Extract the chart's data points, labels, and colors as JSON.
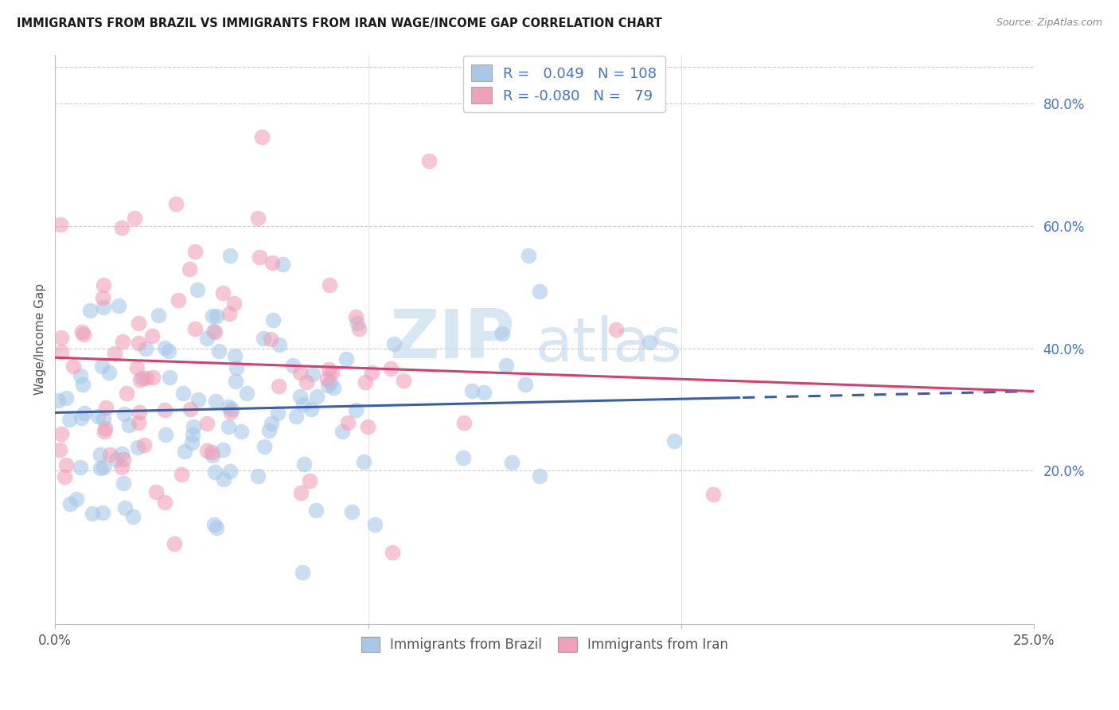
{
  "title": "IMMIGRANTS FROM BRAZIL VS IMMIGRANTS FROM IRAN WAGE/INCOME GAP CORRELATION CHART",
  "source": "Source: ZipAtlas.com",
  "ylabel": "Wage/Income Gap",
  "right_yticks": [
    "20.0%",
    "40.0%",
    "60.0%",
    "80.0%"
  ],
  "right_ytick_vals": [
    0.2,
    0.4,
    0.6,
    0.8
  ],
  "x_range": [
    0.0,
    0.25
  ],
  "y_range": [
    -0.05,
    0.88
  ],
  "brazil_color": "#a8c8e8",
  "iran_color": "#f0a0b8",
  "brazil_line_color": "#3a5fa8",
  "iran_line_color": "#d04070",
  "brazil_R": 0.049,
  "brazil_N": 108,
  "iran_R": -0.08,
  "iran_N": 79,
  "watermark_zip": "ZIP",
  "watermark_atlas": "atlas",
  "brazil_seed": 12,
  "iran_seed": 7,
  "legend_label_brazil": "Immigrants from Brazil",
  "legend_label_iran": "Immigrants from Iran",
  "brazil_intercept": 0.295,
  "brazil_slope": 0.14,
  "iran_intercept": 0.385,
  "iran_slope": -0.22
}
